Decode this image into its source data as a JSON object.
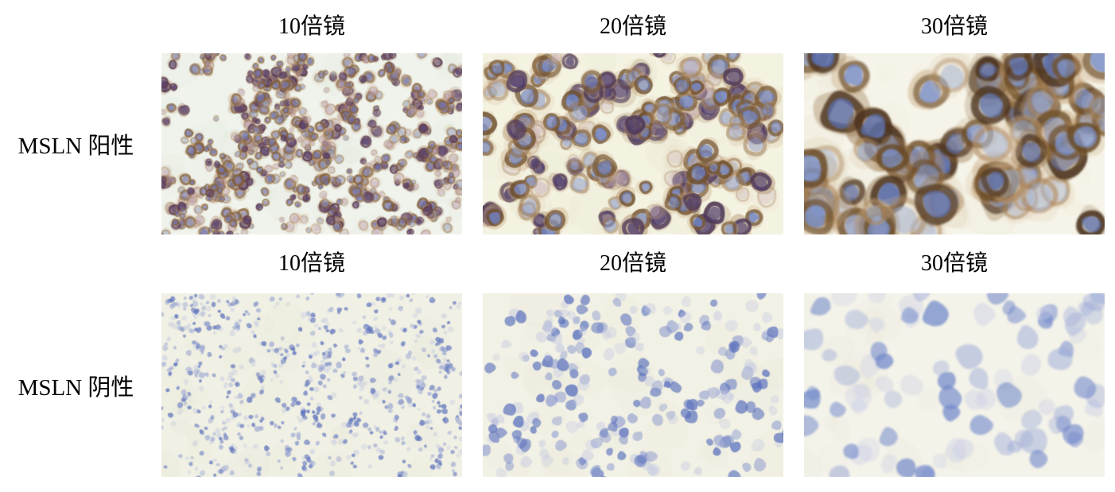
{
  "figure": {
    "text_color": "#000000",
    "background": "#ffffff",
    "rows": [
      {
        "label": "MSLN 阳性",
        "appearance": "IHC positive: brown membrane/cytoplasm staining with blue-purple nuclei",
        "panels": [
          {
            "header": "10倍镜",
            "render": {
              "seed": 11,
              "bg": "#eff3ec",
              "mottle": "#e2e8dc",
              "mottleCount": 26,
              "count": 650,
              "rmin": 3,
              "rmax": 6.5,
              "chain": 0.55,
              "blur": 0.5,
              "cellTypes": [
                {
                  "w": 0.36,
                  "fill": "#6f6fa8",
                  "rim": "#7c5a33",
                  "rimW": 0.5,
                  "alpha": 0.8,
                  "halo": "#c9a57e"
                },
                {
                  "w": 0.27,
                  "fill": "#58406a",
                  "rim": "#5a3a50",
                  "rimW": 0.45,
                  "alpha": 0.9,
                  "halo": "#b08a6a"
                },
                {
                  "w": 0.2,
                  "fill": "#b59ab0",
                  "rim": "#a3795c",
                  "rimW": 0.35,
                  "alpha": 0.5,
                  "halo": "#d4b394"
                },
                {
                  "w": 0.17,
                  "fill": "#8d9ac4",
                  "rim": "#8a6a48",
                  "rimW": 0.4,
                  "alpha": 0.6,
                  "halo": "#d0b08a"
                }
              ]
            }
          },
          {
            "header": "20倍镜",
            "render": {
              "seed": 22,
              "bg": "#f4f3e2",
              "mottle": "#e9e5cd",
              "mottleCount": 34,
              "count": 195,
              "rmin": 7,
              "rmax": 13,
              "chain": 0.45,
              "blur": 0.7,
              "cellTypes": [
                {
                  "w": 0.38,
                  "fill": "#6b80c2",
                  "rim": "#6e4f2e",
                  "rimW": 0.5,
                  "alpha": 0.85,
                  "halo": "#caa87c"
                },
                {
                  "w": 0.25,
                  "fill": "#4f3d6e",
                  "rim": "#503a58",
                  "rimW": 0.45,
                  "alpha": 0.9,
                  "halo": "#a8855e"
                },
                {
                  "w": 0.2,
                  "fill": "#8fa0cf",
                  "rim": "#93714c",
                  "rimW": 0.4,
                  "alpha": 0.6,
                  "halo": "#d7bb96"
                },
                {
                  "w": 0.17,
                  "fill": "#c5aebe",
                  "rim": "#b18f73",
                  "rimW": 0.25,
                  "alpha": 0.45,
                  "halo": "#dfc8ab"
                }
              ]
            }
          },
          {
            "header": "30倍镜",
            "render": {
              "seed": 33,
              "bg": "#f6f4e9",
              "mottle": "#ebe6d2",
              "mottleCount": 24,
              "count": 74,
              "rmin": 14,
              "rmax": 24,
              "chain": 0.4,
              "blur": 1.1,
              "cellTypes": [
                {
                  "w": 0.38,
                  "fill": "#7b93cf",
                  "rim": "#6a4c28",
                  "rimW": 0.45,
                  "alpha": 0.85,
                  "halo": "#b98f5c"
                },
                {
                  "w": 0.3,
                  "fill": "#5a6faf",
                  "rim": "#4c3420",
                  "rimW": 0.5,
                  "alpha": 0.9,
                  "halo": "#8a6436"
                },
                {
                  "w": 0.32,
                  "fill": "#9fb2d8",
                  "rim": "#a8835a",
                  "rimW": 0.3,
                  "alpha": 0.6,
                  "halo": "#d6bd9a"
                }
              ]
            }
          }
        ]
      },
      {
        "label": "MSLN 阴性",
        "appearance": "IHC negative: hematoxylin-only blue nuclei, no brown staining",
        "panels": [
          {
            "header": "10倍镜",
            "render": {
              "seed": 44,
              "bg": "#f0f0e4",
              "mottle": "#e6e6d8",
              "mottleCount": 26,
              "count": 720,
              "rmin": 2.5,
              "rmax": 5,
              "chain": 0.35,
              "blur": 0.4,
              "cellTypes": [
                {
                  "w": 0.42,
                  "fill": "#5d72bd",
                  "alpha": 0.8
                },
                {
                  "w": 0.3,
                  "fill": "#8c9ad0",
                  "alpha": 0.6
                },
                {
                  "w": 0.28,
                  "fill": "#bcc3e0",
                  "alpha": 0.45
                }
              ]
            }
          },
          {
            "header": "20倍镜",
            "render": {
              "seed": 55,
              "bg": "#f2f1e5",
              "mottle": "#e8e7d6",
              "mottleCount": 30,
              "count": 235,
              "rmin": 6,
              "rmax": 11,
              "chain": 0.3,
              "blur": 0.7,
              "cellTypes": [
                {
                  "w": 0.4,
                  "fill": "#5a71bd",
                  "alpha": 0.8
                },
                {
                  "w": 0.3,
                  "fill": "#8695cd",
                  "alpha": 0.6
                },
                {
                  "w": 0.3,
                  "fill": "#c0c5e2",
                  "alpha": 0.45
                }
              ]
            }
          },
          {
            "header": "30倍镜",
            "render": {
              "seed": 66,
              "bg": "#f4f3ea",
              "mottle": "#eae8da",
              "mottleCount": 22,
              "count": 82,
              "rmin": 12,
              "rmax": 21,
              "chain": 0.25,
              "blur": 1.3,
              "cellTypes": [
                {
                  "w": 0.35,
                  "fill": "#7289cb",
                  "alpha": 0.75
                },
                {
                  "w": 0.3,
                  "fill": "#9dabd8",
                  "alpha": 0.55
                },
                {
                  "w": 0.35,
                  "fill": "#c8cce6",
                  "alpha": 0.45
                }
              ]
            }
          }
        ]
      }
    ]
  }
}
